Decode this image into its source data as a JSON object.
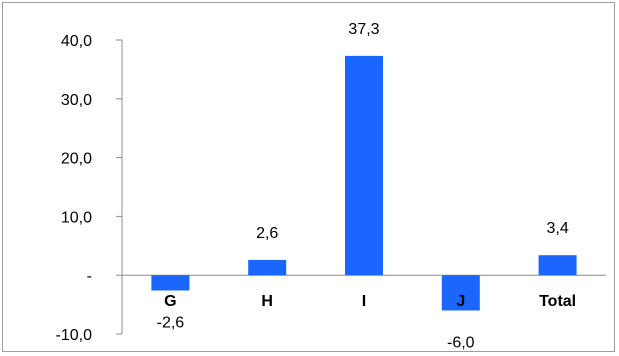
{
  "chart_data": {
    "type": "bar",
    "categories": [
      "G",
      "H",
      "I",
      "J",
      "Total"
    ],
    "values": [
      -2.6,
      2.6,
      37.3,
      -6.0,
      3.4
    ],
    "data_labels": [
      "-2,6",
      "2,6",
      "37,3",
      "-6,0",
      "3,4"
    ],
    "ylim": [
      -10,
      40
    ],
    "yticks": [
      {
        "value": 40,
        "label": "40,0"
      },
      {
        "value": 30,
        "label": "30,0"
      },
      {
        "value": 20,
        "label": "20,0"
      },
      {
        "value": 10,
        "label": "10,0"
      },
      {
        "value": 0,
        "label": "-"
      },
      {
        "value": -10,
        "label": "-10,0"
      }
    ],
    "title": "",
    "xlabel": "",
    "ylabel": "",
    "grid": false,
    "legend": "none",
    "bar_color": "#1a66ff"
  }
}
